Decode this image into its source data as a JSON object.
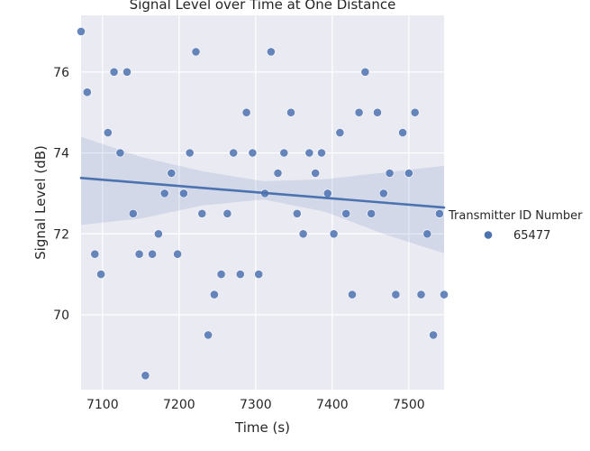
{
  "chart_data": {
    "type": "scatter",
    "title": "Signal Level over Time at One Distance",
    "xlabel": "Time (s)",
    "ylabel": "Signal Level (dB)",
    "xlim": [
      7072,
      7546
    ],
    "ylim": [
      68.15,
      77.4
    ],
    "xticks": [
      7100,
      7200,
      7300,
      7400,
      7500
    ],
    "yticks": [
      70,
      72,
      74,
      76
    ],
    "grid": true,
    "legend": {
      "title": "Transmitter ID Number",
      "placement": "right"
    },
    "series": [
      {
        "name": "65477",
        "color": "#4c72b0",
        "points": [
          [
            7072,
            77.0
          ],
          [
            7080,
            75.5
          ],
          [
            7090,
            71.5
          ],
          [
            7098,
            71.0
          ],
          [
            7107,
            74.5
          ],
          [
            7115,
            76.0
          ],
          [
            7123,
            74.0
          ],
          [
            7132,
            76.0
          ],
          [
            7140,
            72.5
          ],
          [
            7148,
            71.5
          ],
          [
            7156,
            68.5
          ],
          [
            7165,
            71.5
          ],
          [
            7173,
            72.0
          ],
          [
            7181,
            73.0
          ],
          [
            7190,
            73.5
          ],
          [
            7198,
            71.5
          ],
          [
            7206,
            73.0
          ],
          [
            7214,
            74.0
          ],
          [
            7222,
            76.5
          ],
          [
            7230,
            72.5
          ],
          [
            7238,
            69.5
          ],
          [
            7246,
            70.5
          ],
          [
            7255,
            71.0
          ],
          [
            7263,
            72.5
          ],
          [
            7271,
            74.0
          ],
          [
            7280,
            71.0
          ],
          [
            7288,
            75.0
          ],
          [
            7296,
            74.0
          ],
          [
            7304,
            71.0
          ],
          [
            7312,
            73.0
          ],
          [
            7320,
            76.5
          ],
          [
            7329,
            73.5
          ],
          [
            7337,
            74.0
          ],
          [
            7346,
            75.0
          ],
          [
            7354,
            72.5
          ],
          [
            7362,
            72.0
          ],
          [
            7370,
            74.0
          ],
          [
            7378,
            73.5
          ],
          [
            7386,
            74.0
          ],
          [
            7394,
            73.0
          ],
          [
            7402,
            72.0
          ],
          [
            7410,
            74.5
          ],
          [
            7418,
            72.5
          ],
          [
            7426,
            70.5
          ],
          [
            7435,
            75.0
          ],
          [
            7443,
            76.0
          ],
          [
            7451,
            72.5
          ],
          [
            7459,
            75.0
          ],
          [
            7467,
            73.0
          ],
          [
            7475,
            73.5
          ],
          [
            7483,
            70.5
          ],
          [
            7492,
            74.5
          ],
          [
            7500,
            73.5
          ],
          [
            7508,
            75.0
          ],
          [
            7516,
            70.5
          ],
          [
            7524,
            72.0
          ],
          [
            7532,
            69.5
          ],
          [
            7540,
            72.5
          ],
          [
            7546,
            70.5
          ]
        ]
      }
    ],
    "regression": {
      "x": [
        7072,
        7546
      ],
      "y": [
        73.38,
        72.65
      ]
    },
    "confidence_band": {
      "x": [
        7072,
        7150,
        7230,
        7310,
        7390,
        7470,
        7546
      ],
      "upper": [
        74.4,
        73.9,
        73.55,
        73.3,
        73.35,
        73.52,
        73.68
      ],
      "lower": [
        72.22,
        72.38,
        72.7,
        72.85,
        72.55,
        71.98,
        71.52
      ]
    }
  }
}
